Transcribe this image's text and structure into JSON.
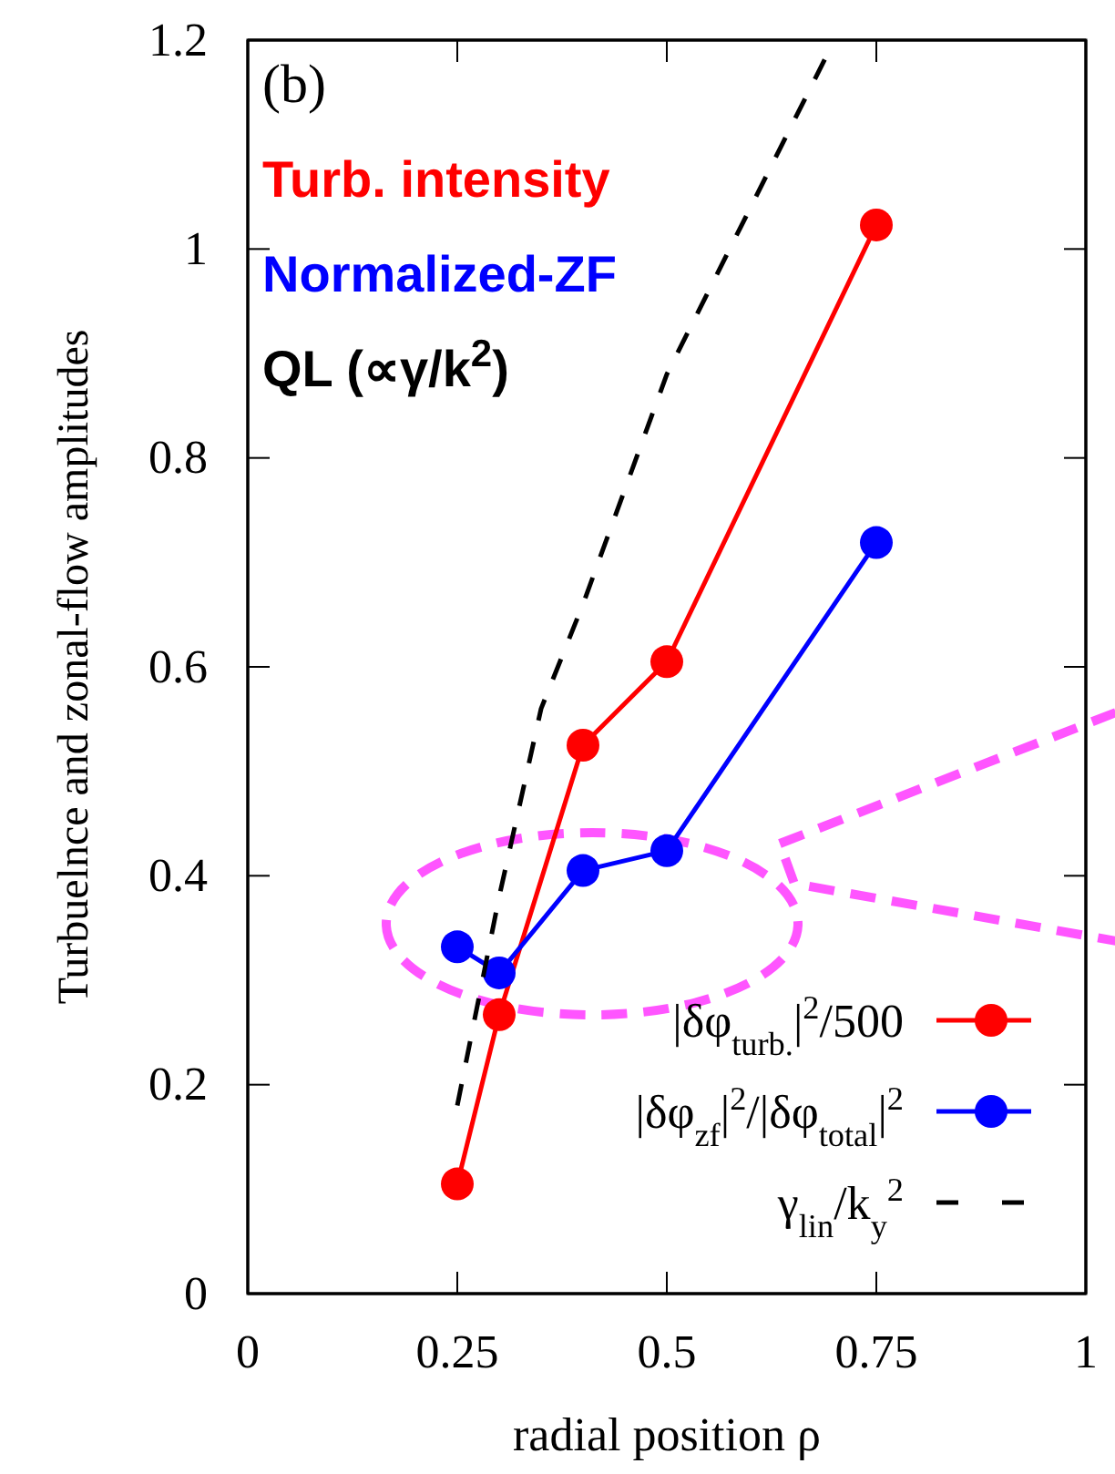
{
  "chart_data": {
    "type": "line",
    "xlabel": "radial position ρ",
    "ylabel": "Turbuelnce and zonal-flow amplitudes",
    "xlim": [
      0,
      1
    ],
    "xticks": [
      0,
      0.25,
      0.5,
      0.75,
      1
    ],
    "ylim": [
      0,
      1.2
    ],
    "yticks": [
      0,
      0.2,
      0.4,
      0.6,
      0.8,
      1,
      1.2
    ],
    "legend": "bottom right",
    "grid": false,
    "annotations": [
      "(b)",
      "Turb. intensity",
      "Normalized-ZF",
      "QL (∝γ/k$^{2}$)"
    ],
    "series": [
      {
        "name": "|δφ$_{turb.}$|$^{2}$/500",
        "color": "#ff0000",
        "marker": "circle",
        "line_style": "solid",
        "x": [
          0.25,
          0.3,
          0.4,
          0.5,
          0.75
        ],
        "values": [
          0.105,
          0.267,
          0.525,
          0.605,
          1.023
        ]
      },
      {
        "name": "|δφ$_{zf}$|$^{2}$/|δφ$_{total}$|$^{2}$",
        "color": "#0000ff",
        "marker": "circle",
        "line_style": "solid",
        "x": [
          0.25,
          0.3,
          0.4,
          0.5,
          0.75
        ],
        "values": [
          0.332,
          0.307,
          0.405,
          0.424,
          0.719
        ]
      },
      {
        "name": "γ$_{lin}$/k$_{y}$$^{2}$",
        "color": "#000000",
        "marker": "none",
        "line_style": "dashed",
        "x": [
          0.25,
          0.3,
          0.35,
          0.4,
          0.5,
          0.6,
          0.7
        ],
        "values": [
          0.18,
          0.38,
          0.56,
          0.66,
          0.88,
          1.04,
          1.2
        ]
      }
    ]
  }
}
